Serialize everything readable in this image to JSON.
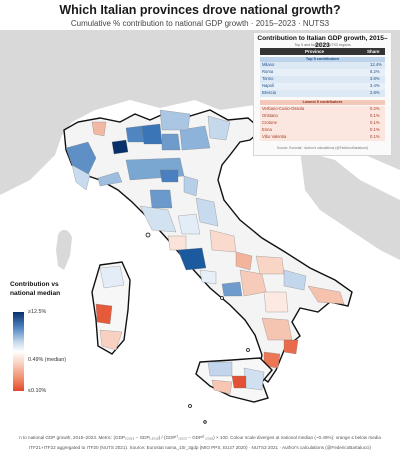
{
  "title": "Which Italian provinces drove national growth?",
  "subtitle": "Cumulative % contribution to national GDP growth · 2015–2023 · NUTS3",
  "panel": {
    "title": "Contribution to Italian GDP growth, 2015–2023",
    "subtitle": "Top 5 and bottom 5 NUTS3 regions",
    "col_province": "Province",
    "col_share": "Share",
    "top_label": "Top 5 contributors",
    "low_label": "Lowest 5 contributors",
    "top_rows": [
      {
        "name": "Milano",
        "share": "12.4%"
      },
      {
        "name": "Roma",
        "share": "8.2%"
      },
      {
        "name": "Torino",
        "share": "3.8%"
      },
      {
        "name": "Napoli",
        "share": "3.4%"
      },
      {
        "name": "Brescia",
        "share": "2.8%"
      }
    ],
    "low_rows": [
      {
        "name": "Verbano-Cusio-Ossola",
        "share": "0.2%"
      },
      {
        "name": "Oristano",
        "share": "0.1%"
      },
      {
        "name": "Crotone",
        "share": "0.1%"
      },
      {
        "name": "Enna",
        "share": "0.1%"
      },
      {
        "name": "Vibo Valentia",
        "share": "0.1%"
      }
    ],
    "source": "Source: Eurostat · Author's calculations (@FedericoBartalucci)"
  },
  "legend": {
    "title": "Contribution vs national median",
    "max_label": "≥12.5%",
    "mid_label": "0.49% (median)",
    "min_label": "≤0.10%",
    "high_color": "#08306b",
    "mid_color": "#ffffff",
    "low_color": "#e4472c"
  },
  "footer": {
    "line1": "n to national GDP growth, 2015–2023. Metric: (GDPᵢ,₂₀₂₃ − GDPᵢ,₂₀₁₅) / (GDPᴵᵀ,₂₀₂₃ − GDPᴵᵀ,₂₀₁₅) × 100. Colour scale diverges at national median (~0.49%): orange ≤ below media",
    "line2": "ITF21+ITF22 aggregated to ITF20 (NUTS 2021). Source: Eurostat nama_10r_3gdp (MIO PPS, EU27 2020) · NUTS3 2021 · Author's calculations (@FedericoBartalucci)"
  },
  "colors": {
    "sea": "#ffffff",
    "land_out": "#d9d9d9",
    "land_neutral": "#f7f7f7",
    "border": "#111111"
  }
}
